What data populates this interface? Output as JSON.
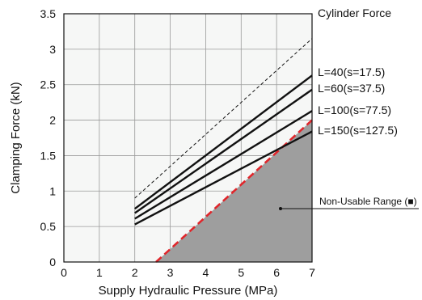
{
  "chart_data": {
    "type": "line",
    "xlabel": "Supply Hydraulic Pressure (MPa)",
    "ylabel": "Clamping Force (kN)",
    "xlim": [
      0,
      7
    ],
    "ylim": [
      0,
      3.5
    ],
    "x_ticks": [
      "0",
      "1",
      "2",
      "3",
      "4",
      "5",
      "6",
      "7"
    ],
    "y_ticks": [
      "0",
      "0.5",
      "1",
      "1.5",
      "2",
      "2.5",
      "3",
      "3.5"
    ],
    "grid": true,
    "series": [
      {
        "name": "Cylinder Force",
        "style": "dashed",
        "color": "#111111",
        "x": [
          2,
          7
        ],
        "y": [
          0.9,
          3.15
        ]
      },
      {
        "name": "L=40(s=17.5)",
        "style": "solid",
        "color": "#111111",
        "x": [
          2,
          7
        ],
        "y": [
          0.75,
          2.63
        ]
      },
      {
        "name": "L=60(s=37.5)",
        "style": "solid",
        "color": "#111111",
        "x": [
          2,
          7
        ],
        "y": [
          0.69,
          2.43
        ]
      },
      {
        "name": "L=100(s=77.5)",
        "style": "solid",
        "color": "#111111",
        "x": [
          2,
          7
        ],
        "y": [
          0.61,
          2.13
        ]
      },
      {
        "name": "L=150(s=127.5)",
        "style": "solid",
        "color": "#111111",
        "x": [
          2,
          7
        ],
        "y": [
          0.53,
          1.84
        ]
      }
    ],
    "non_usable_range": {
      "label": "Non-Usable Range (■)",
      "boundary": {
        "style": "dashed",
        "color": "#e0262b",
        "x": [
          2.6,
          7
        ],
        "y": [
          0,
          2.0
        ]
      },
      "fill_color": "#9e9e9e"
    },
    "plot_background": "#f6f7f6",
    "grid_color": "#9a9a9a"
  }
}
